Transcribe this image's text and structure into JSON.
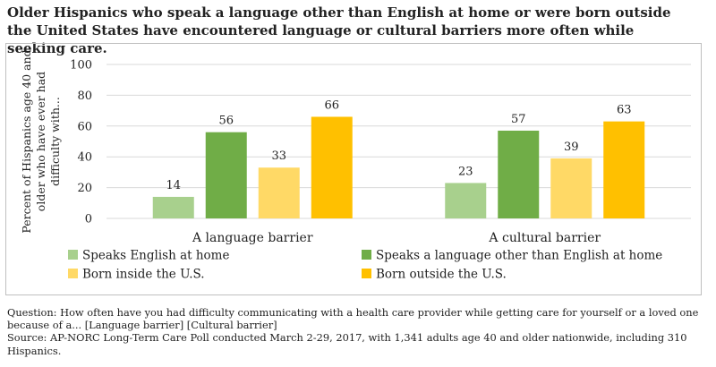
{
  "title": "Older Hispanics who speak a language other than English at home or were born outside the United States have encountered language or cultural barriers more often while seeking care.",
  "question": "Question: How often have you had difficulty communicating with a health care provider while getting care for yourself or a loved one because of a... [Language barrier] [Cultural barrier]",
  "source": "Source: AP-NORC Long-Term Care Poll conducted March 2-29, 2017, with 1,341 adults age 40 and older nationwide, including 310 Hispanics.",
  "chart_data": {
    "type": "bar",
    "title": "Older Hispanics who speak a language other than English at home or were born outside the United States have encountered language or cultural barriers more often while seeking care.",
    "ylabel": "Percent of Hispanics age 40 and older who have ever had difficulty with...",
    "ylabel_lines": [
      "Percent of Hispanics age 40 and",
      "older who have ever had",
      "difficulty with..."
    ],
    "xlabel": "",
    "ylim": [
      0,
      100
    ],
    "yticks": [
      0,
      20,
      40,
      60,
      80,
      100
    ],
    "grid": true,
    "legend_position": "bottom",
    "categories": [
      "A language barrier",
      "A cultural barrier"
    ],
    "series": [
      {
        "name": "Speaks English at home",
        "color": "#a8d08d",
        "values": [
          14,
          23
        ]
      },
      {
        "name": "Speaks a language other than English at home",
        "color": "#70ad47",
        "values": [
          56,
          57
        ]
      },
      {
        "name": "Born inside the U.S.",
        "color": "#ffd966",
        "values": [
          33,
          39
        ]
      },
      {
        "name": "Born outside the U.S.",
        "color": "#ffc000",
        "values": [
          66,
          63
        ]
      }
    ]
  }
}
